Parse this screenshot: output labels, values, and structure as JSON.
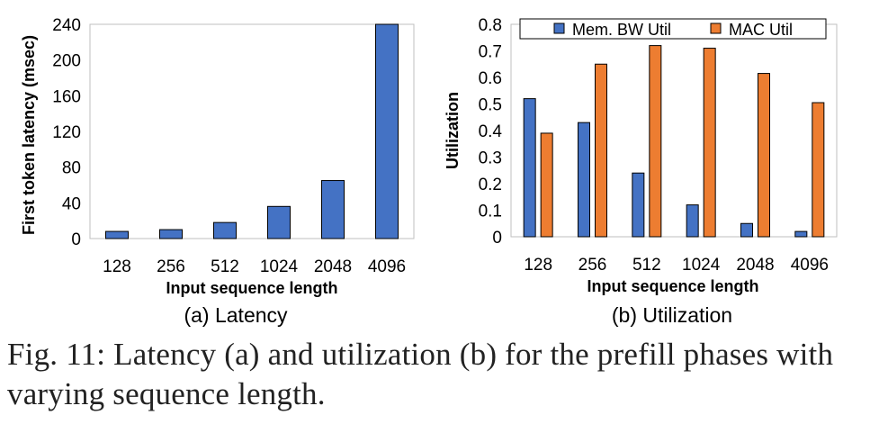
{
  "chart_data": [
    {
      "type": "bar",
      "categories": [
        "128",
        "256",
        "512",
        "1024",
        "2048",
        "4096"
      ],
      "series": [
        {
          "values": [
            8,
            10,
            18,
            36,
            65,
            240
          ]
        }
      ],
      "xlabel": "Input sequence length",
      "ylabel": "First token latency (msec)",
      "ylim": [
        0,
        240
      ],
      "yticks": [
        "0",
        "40",
        "80",
        "120",
        "160",
        "200",
        "240"
      ],
      "subcaption": "(a) Latency",
      "colors": [
        "#4472C4"
      ]
    },
    {
      "type": "bar",
      "categories": [
        "128",
        "256",
        "512",
        "1024",
        "2048",
        "4096"
      ],
      "series": [
        {
          "name": "Mem. BW Util",
          "values": [
            0.52,
            0.43,
            0.24,
            0.12,
            0.05,
            0.02
          ]
        },
        {
          "name": "MAC Util",
          "values": [
            0.39,
            0.65,
            0.72,
            0.71,
            0.615,
            0.505
          ]
        }
      ],
      "xlabel": "Input sequence length",
      "ylabel": "Utilization",
      "ylim": [
        0,
        0.8
      ],
      "yticks": [
        "0",
        "0.1",
        "0.2",
        "0.3",
        "0.4",
        "0.5",
        "0.6",
        "0.7",
        "0.8"
      ],
      "legend_position": "top",
      "subcaption": "(b) Utilization",
      "colors": [
        "#4472C4",
        "#ED7D31"
      ]
    }
  ],
  "caption": "Fig. 11: Latency (a) and utilization (b) for the prefill phases with varying sequence length."
}
